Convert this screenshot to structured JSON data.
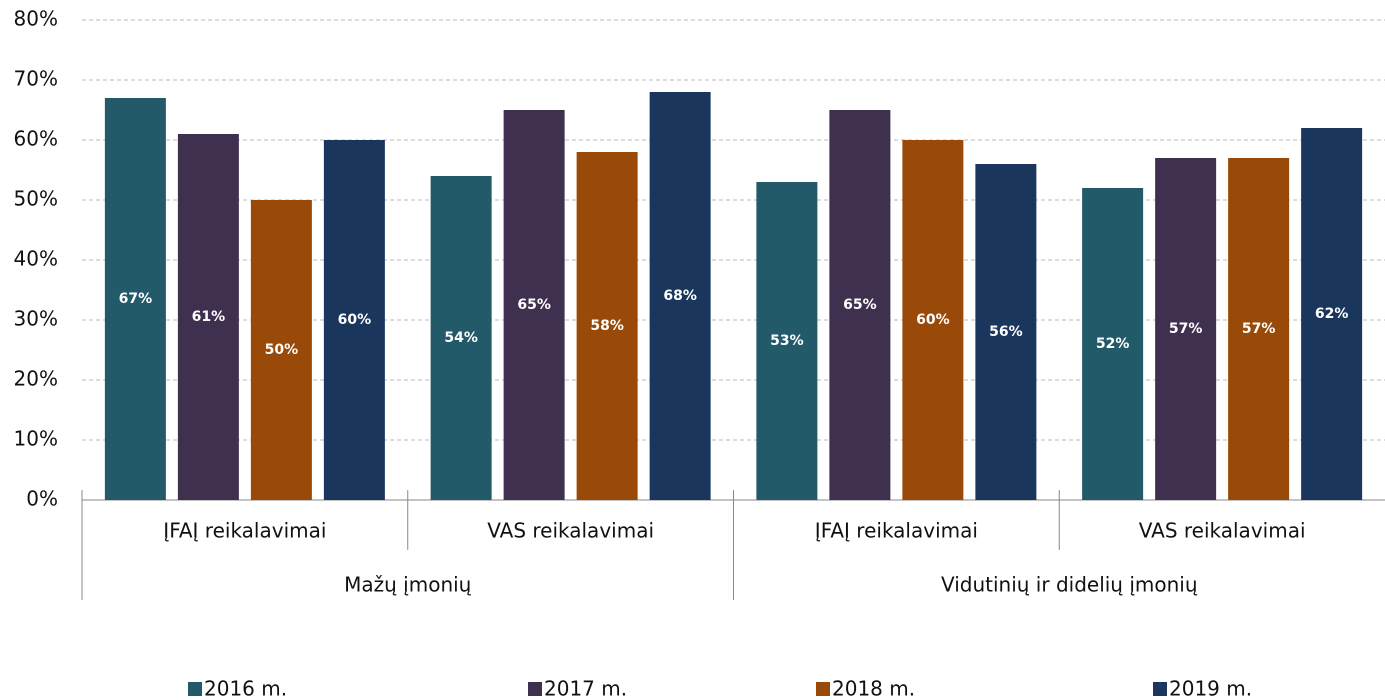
{
  "chart_data": {
    "type": "bar",
    "groups": [
      {
        "name": "Mažų įmonių",
        "categories": [
          "ĮFAĮ reikalavimai",
          "VAS reikalavimai"
        ]
      },
      {
        "name": "Vidutinių ir didelių įmonių",
        "categories": [
          "ĮFAĮ reikalavimai",
          "VAS reikalavimai"
        ]
      }
    ],
    "series": [
      {
        "name": "2016 m.",
        "color": "#235a6a",
        "values": [
          67,
          54,
          53,
          52
        ],
        "value_labels": [
          "67%",
          "54%",
          "53%",
          "52%"
        ]
      },
      {
        "name": "2017 m.",
        "color": "#40304f",
        "values": [
          61,
          65,
          65,
          57
        ],
        "value_labels": [
          "61%",
          "65%",
          "65%",
          "57%"
        ]
      },
      {
        "name": "2018 m.",
        "color": "#9a4a08",
        "values": [
          50,
          58,
          60,
          57
        ],
        "value_labels": [
          "50%",
          "58%",
          "60%",
          "57%"
        ]
      },
      {
        "name": "2019 m.",
        "color": "#1b365d",
        "values": [
          60,
          68,
          56,
          62
        ],
        "value_labels": [
          "60%",
          "68%",
          "56%",
          "62%"
        ]
      }
    ],
    "ylim": [
      0,
      80
    ],
    "yticks": [
      {
        "value": 0,
        "label": "0%"
      },
      {
        "value": 10,
        "label": "10%"
      },
      {
        "value": 20,
        "label": "20%"
      },
      {
        "value": 30,
        "label": "30%"
      },
      {
        "value": 40,
        "label": "40%"
      },
      {
        "value": 50,
        "label": "50%"
      },
      {
        "value": 60,
        "label": "60%"
      },
      {
        "value": 70,
        "label": "70%"
      },
      {
        "value": 80,
        "label": "80%"
      }
    ],
    "grid": true,
    "legend": "bottom"
  }
}
